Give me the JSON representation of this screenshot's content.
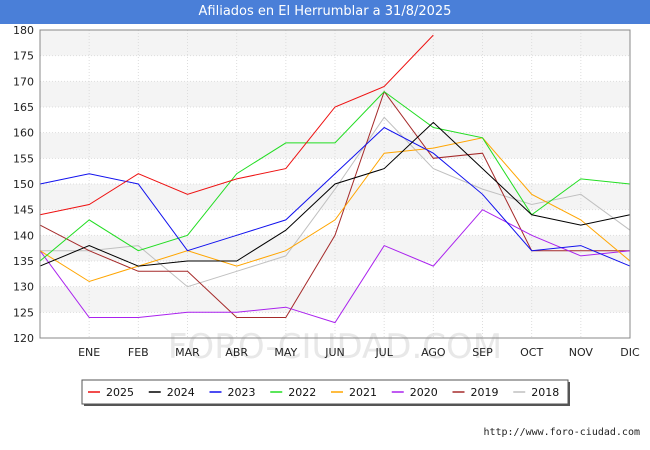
{
  "header": {
    "title": "Afiliados en El Herrumblar a 31/8/2025"
  },
  "footer": {
    "url": "http://www.foro-ciudad.com"
  },
  "watermark": "FORO-CIUDAD.COM",
  "chart_data": {
    "type": "line",
    "title": "Afiliados en El Herrumblar a 31/8/2025",
    "xlabel": "",
    "ylabel": "",
    "categories": [
      "",
      "ENE",
      "FEB",
      "MAR",
      "ABR",
      "MAY",
      "JUN",
      "JUL",
      "AGO",
      "SEP",
      "OCT",
      "NOV",
      "DIC"
    ],
    "ylim": [
      120,
      180
    ],
    "yticks": [
      120,
      125,
      130,
      135,
      140,
      145,
      150,
      155,
      160,
      165,
      170,
      175,
      180
    ],
    "legend_position": "bottom",
    "series": [
      {
        "name": "2025",
        "color": "#ee1111",
        "values": [
          144,
          146,
          152,
          148,
          151,
          153,
          165,
          169,
          179,
          null,
          null,
          null,
          null
        ]
      },
      {
        "name": "2024",
        "color": "#000000",
        "values": [
          134,
          138,
          134,
          135,
          135,
          141,
          150,
          153,
          162,
          153,
          144,
          142,
          144
        ]
      },
      {
        "name": "2023",
        "color": "#1111ee",
        "values": [
          150,
          152,
          150,
          137,
          140,
          143,
          152,
          161,
          156,
          148,
          137,
          138,
          134
        ]
      },
      {
        "name": "2022",
        "color": "#22dd22",
        "values": [
          135,
          143,
          137,
          140,
          152,
          158,
          158,
          168,
          161,
          159,
          144,
          151,
          150
        ]
      },
      {
        "name": "2021",
        "color": "#ffa500",
        "values": [
          137,
          131,
          134,
          137,
          134,
          137,
          143,
          156,
          157,
          159,
          148,
          143,
          135
        ]
      },
      {
        "name": "2020",
        "color": "#aa22ee",
        "values": [
          137,
          124,
          124,
          125,
          125,
          126,
          123,
          138,
          134,
          145,
          140,
          136,
          137
        ]
      },
      {
        "name": "2019",
        "color": "#a52a2a",
        "values": [
          142,
          137,
          133,
          133,
          124,
          124,
          140,
          168,
          155,
          156,
          137,
          137,
          137
        ]
      },
      {
        "name": "2018",
        "color": "#c0c0c0",
        "values": [
          137,
          137,
          138,
          130,
          133,
          136,
          149,
          163,
          153,
          149,
          146,
          148,
          141
        ]
      }
    ]
  }
}
